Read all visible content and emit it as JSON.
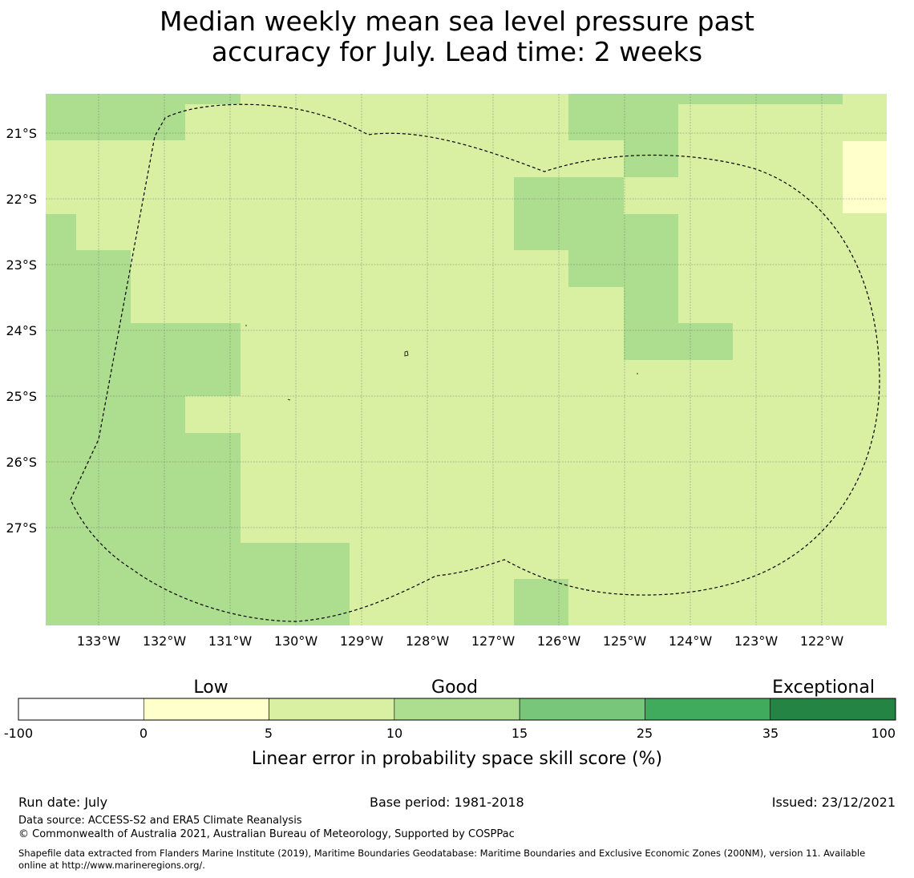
{
  "title_line1": "Median weekly mean sea level pressure past",
  "title_line2": "accuracy for July. Lead time: 2 weeks",
  "map": {
    "lon_ticks": [
      "133°W",
      "132°W",
      "131°W",
      "130°W",
      "129°W",
      "128°W",
      "127°W",
      "126°W",
      "125°W",
      "124°W",
      "123°W",
      "122°W"
    ],
    "lat_ticks": [
      "21°S",
      "22°S",
      "23°S",
      "24°S",
      "25°S",
      "26°S",
      "27°S"
    ],
    "category_colors": {
      "low": "#ffffcc",
      "good_5_10": "#d9f0a3",
      "good_10_15": "#addd8e"
    },
    "boundary_style": "dashed-black"
  },
  "colorbar": {
    "category_labels": [
      "Low",
      "Good",
      "Exceptional"
    ],
    "tick_labels": [
      "-100",
      "0",
      "5",
      "10",
      "15",
      "25",
      "35",
      "100"
    ],
    "colors": [
      "#ffffff",
      "#ffffcc",
      "#d9f0a3",
      "#addd8e",
      "#78c679",
      "#41ab5d",
      "#238443"
    ],
    "xlabel": "Linear error in probability space skill score (%)"
  },
  "footer": {
    "run_date": "Run date: July",
    "base_period": "Base period: 1981-2018",
    "issued": "Issued: 23/12/2021",
    "data_source": "Data source: ACCESS-S2 and ERA5 Climate Reanalysis",
    "copyright": "© Commonwealth of Australia 2021, Australian Bureau of Meteorology, Supported by COSPPac",
    "shapefile_line1": "Shapefile data extracted from Flanders Marine Institute (2019), Maritime Boundaries Geodatabase: Maritime Boundaries and Exclusive Economic Zones (200NM), version 11. Available",
    "shapefile_line2": "online at http://www.marineregions.org/."
  }
}
